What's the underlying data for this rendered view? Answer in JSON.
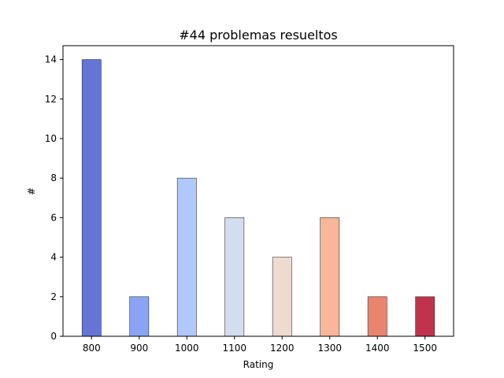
{
  "chart_data": {
    "type": "bar",
    "title": "#44 problemas resueltos",
    "xlabel": "Rating",
    "ylabel": "#",
    "categories": [
      "800",
      "900",
      "1000",
      "1100",
      "1200",
      "1300",
      "1400",
      "1500"
    ],
    "values": [
      14,
      2,
      8,
      6,
      4,
      6,
      2,
      2
    ],
    "colors": [
      "#6475d6",
      "#89a4f5",
      "#b1c8fc",
      "#d2deef",
      "#efdad0",
      "#f8b69a",
      "#e8856f",
      "#c1334d"
    ],
    "yticks": [
      0,
      2,
      4,
      6,
      8,
      10,
      12,
      14
    ],
    "ylim": [
      0,
      14.7
    ],
    "grid": false,
    "legend": "none"
  }
}
